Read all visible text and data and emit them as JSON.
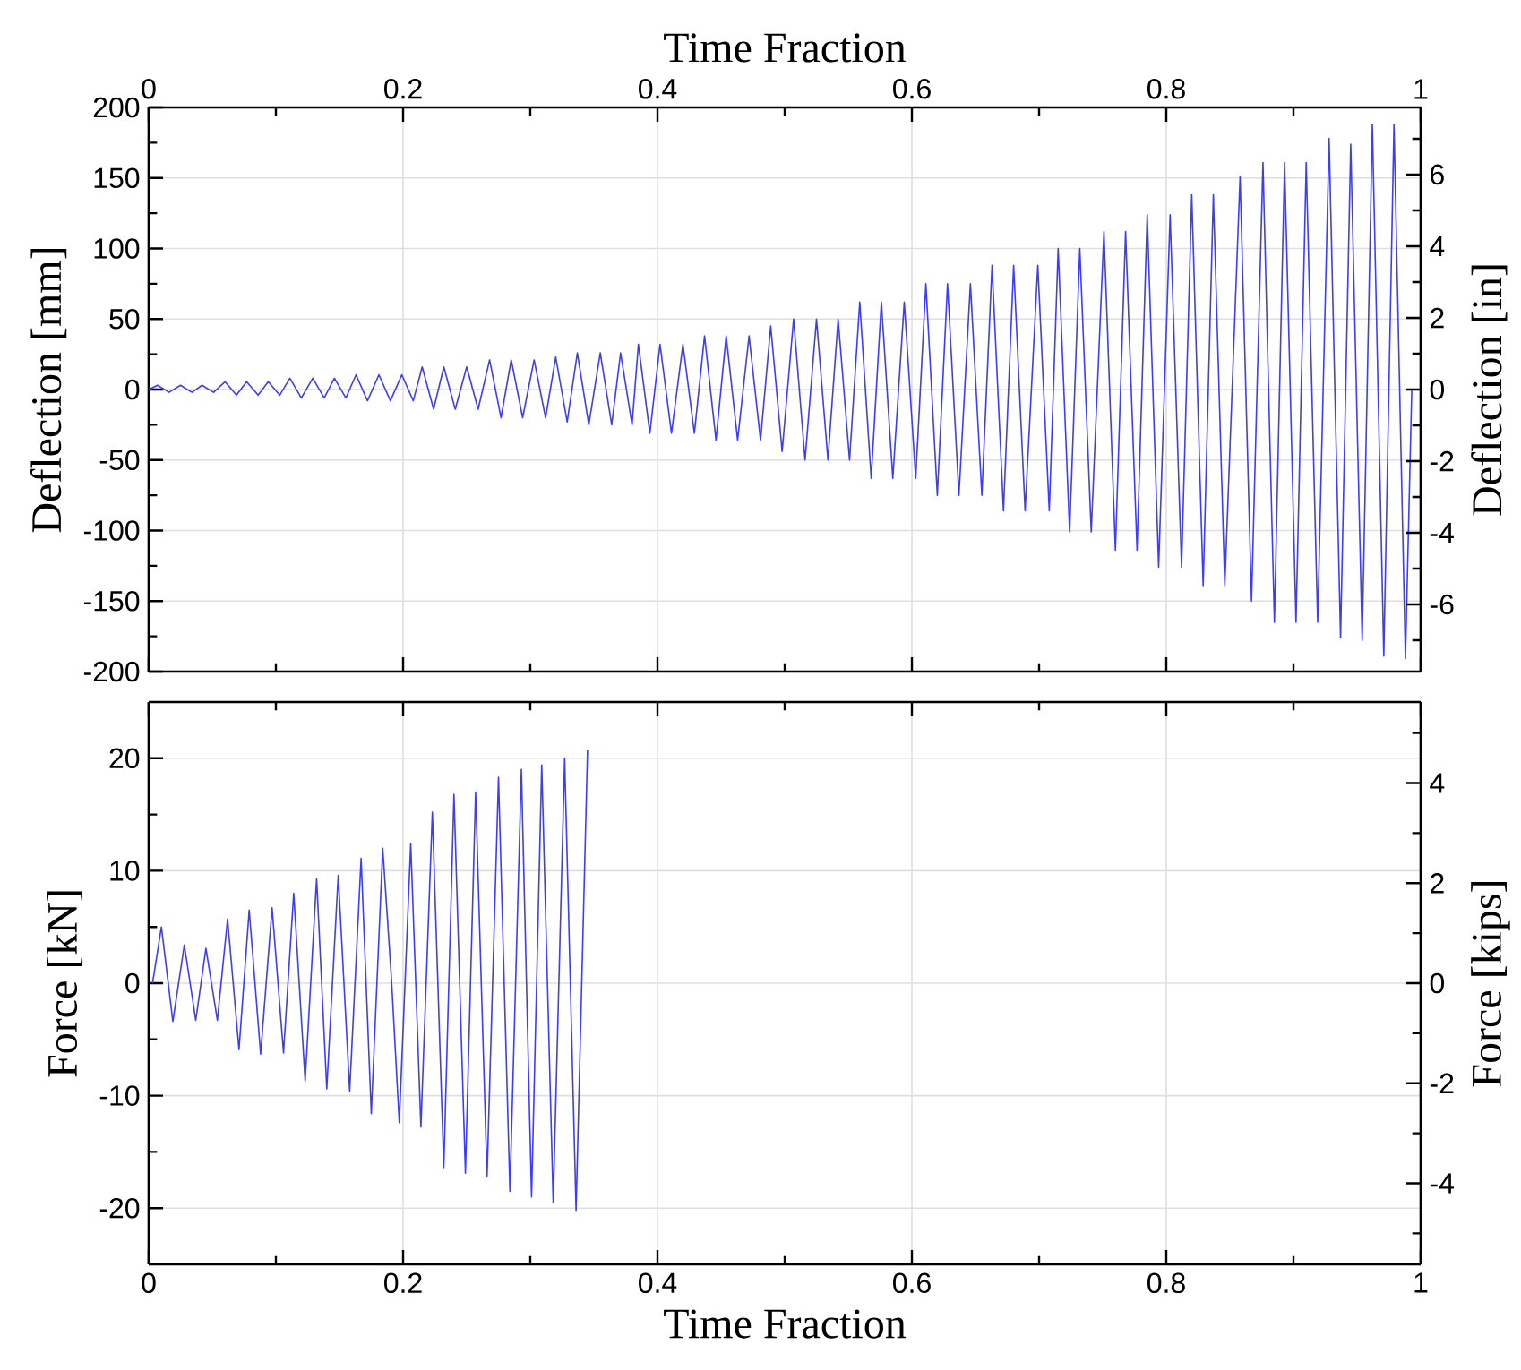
{
  "chart_data": [
    {
      "type": "line",
      "ylabel": "Deflection [mm]",
      "y2label": "Deflection [in]",
      "x2label": "Time Fraction",
      "grid": true,
      "xlim": [
        0,
        1
      ],
      "x2lim": [
        0,
        1
      ],
      "x2ticks": [
        0,
        {
          "value": 0.1,
          "label": null
        },
        0.2,
        {
          "value": 0.3,
          "label": null
        },
        0.4,
        {
          "value": 0.5,
          "label": null
        },
        0.6,
        {
          "value": 0.7,
          "label": null
        },
        0.8,
        {
          "value": 0.9,
          "label": null
        },
        1
      ],
      "ylim": [
        -200,
        200
      ],
      "yticks": [
        -200,
        {
          "value": -175,
          "label": null
        },
        -150,
        {
          "value": -125,
          "label": null
        },
        -100,
        {
          "value": -75,
          "label": null
        },
        -50,
        {
          "value": -25,
          "label": null
        },
        0,
        {
          "value": 25,
          "label": null
        },
        50,
        {
          "value": 75,
          "label": null
        },
        100,
        {
          "value": 125,
          "label": null
        },
        150,
        {
          "value": 175,
          "label": null
        },
        200
      ],
      "y2lim": [
        -7.874,
        7.874
      ],
      "y2ticks": [
        {
          "value": -7,
          "label": null
        },
        -6,
        {
          "value": -5,
          "label": null
        },
        -4,
        {
          "value": -3,
          "label": null
        },
        -2,
        {
          "value": -1,
          "label": null
        },
        0,
        {
          "value": 1,
          "label": null
        },
        2,
        {
          "value": 3,
          "label": null
        },
        4,
        {
          "value": 5,
          "label": null
        },
        6,
        {
          "value": 7,
          "label": null
        }
      ],
      "series": [
        {
          "color": "#3c3cff",
          "x": [
            0,
            0.007,
            0.016,
            0.025,
            0.034,
            0.042,
            0.051,
            0.06,
            0.069,
            0.077,
            0.086,
            0.094,
            0.103,
            0.111,
            0.12,
            0.129,
            0.138,
            0.146,
            0.155,
            0.163,
            0.172,
            0.181,
            0.19,
            0.199,
            0.208,
            0.215,
            0.224,
            0.232,
            0.241,
            0.25,
            0.259,
            0.268,
            0.277,
            0.285,
            0.294,
            0.303,
            0.312,
            0.32,
            0.329,
            0.337,
            0.346,
            0.355,
            0.364,
            0.371,
            0.38,
            0.385,
            0.394,
            0.402,
            0.411,
            0.42,
            0.429,
            0.437,
            0.446,
            0.454,
            0.463,
            0.472,
            0.481,
            0.489,
            0.498,
            0.507,
            0.516,
            0.525,
            0.534,
            0.542,
            0.551,
            0.559,
            0.568,
            0.576,
            0.585,
            0.594,
            0.603,
            0.611,
            0.62,
            0.628,
            0.637,
            0.646,
            0.655,
            0.663,
            0.672,
            0.68,
            0.689,
            0.699,
            0.708,
            0.715,
            0.724,
            0.732,
            0.741,
            0.751,
            0.76,
            0.768,
            0.777,
            0.785,
            0.794,
            0.803,
            0.812,
            0.82,
            0.829,
            0.837,
            0.846,
            0.858,
            0.867,
            0.876,
            0.885,
            0.893,
            0.902,
            0.91,
            0.919,
            0.928,
            0.937,
            0.945,
            0.954,
            0.962,
            0.971,
            0.979,
            0.988,
            0.993
          ],
          "values": [
            0,
            3,
            -2,
            3,
            -2,
            3,
            -2,
            5.5,
            -4,
            5.5,
            -4,
            5.5,
            -4,
            8,
            -6,
            8,
            -6,
            8,
            -6,
            10.5,
            -8,
            10.5,
            -8,
            10.5,
            -8,
            16,
            -14,
            16,
            -14,
            16,
            -14,
            21,
            -20,
            21,
            -20,
            21,
            -20,
            23,
            -23,
            26,
            -25,
            26,
            -25,
            26,
            -25,
            32,
            -31,
            32,
            -31,
            32,
            -31,
            38,
            -36,
            38,
            -36,
            38,
            -36,
            45,
            -44,
            50,
            -50,
            50,
            -50,
            50,
            -50,
            62,
            -63,
            62,
            -63,
            62,
            -63,
            75,
            -75,
            75,
            -75,
            75,
            -75,
            88,
            -86,
            88,
            -86,
            88,
            -86,
            100,
            -101,
            100,
            -101,
            112,
            -114,
            112,
            -114,
            124,
            -126,
            124,
            -126,
            138,
            -139,
            138,
            -139,
            151,
            -150,
            161,
            -165,
            161,
            -165,
            161,
            -165,
            178,
            -176,
            174,
            -178,
            188,
            -189,
            188,
            -191,
            0
          ]
        }
      ]
    },
    {
      "type": "line",
      "ylabel": "Force [kN]",
      "y2label": "Force [kips]",
      "xlabel": "Time Fraction",
      "grid": true,
      "xlim": [
        0,
        1
      ],
      "xticks": [
        0,
        {
          "value": 0.1,
          "label": null
        },
        0.2,
        {
          "value": 0.3,
          "label": null
        },
        0.4,
        {
          "value": 0.5,
          "label": null
        },
        0.6,
        {
          "value": 0.7,
          "label": null
        },
        0.8,
        {
          "value": 0.9,
          "label": null
        },
        1
      ],
      "ylim": [
        -25,
        25
      ],
      "yticks": [
        -20,
        {
          "value": -15,
          "label": null
        },
        -10,
        {
          "value": -5,
          "label": null
        },
        0,
        {
          "value": 5,
          "label": null
        },
        10,
        {
          "value": 15,
          "label": null
        },
        20
      ],
      "y2lim": [
        -5.62,
        5.62
      ],
      "y2ticks": [
        {
          "value": -5,
          "label": null
        },
        -4,
        {
          "value": -3,
          "label": null
        },
        -2,
        {
          "value": -1,
          "label": null
        },
        0,
        {
          "value": 1,
          "label": null
        },
        2,
        {
          "value": 3,
          "label": null
        },
        4,
        {
          "value": 5,
          "label": null
        }
      ],
      "series": [
        {
          "color": "#3c3cff",
          "x": [
            0.003,
            0.01,
            0.019,
            0.028,
            0.037,
            0.045,
            0.054,
            0.062,
            0.071,
            0.079,
            0.088,
            0.097,
            0.106,
            0.114,
            0.123,
            0.132,
            0.14,
            0.149,
            0.158,
            0.167,
            0.175,
            0.184,
            0.191,
            0.197,
            0.206,
            0.214,
            0.223,
            0.232,
            0.24,
            0.249,
            0.257,
            0.266,
            0.275,
            0.284,
            0.293,
            0.301,
            0.309,
            0.318,
            0.327,
            0.336,
            0.345
          ],
          "values": [
            0,
            5,
            -3.4,
            3.4,
            -3.3,
            3.1,
            -3.3,
            5.7,
            -5.9,
            6.5,
            -6.3,
            6.7,
            -6.2,
            8,
            -8.7,
            9.3,
            -9.4,
            9.6,
            -9.6,
            11.1,
            -11.6,
            12,
            0.1,
            -12.4,
            12.4,
            -12.8,
            15.2,
            -16.4,
            16.8,
            -16.9,
            17,
            -17.2,
            18.3,
            -18.5,
            19,
            -19,
            19.4,
            -19.5,
            20,
            -20.2,
            20.7
          ]
        }
      ]
    }
  ]
}
